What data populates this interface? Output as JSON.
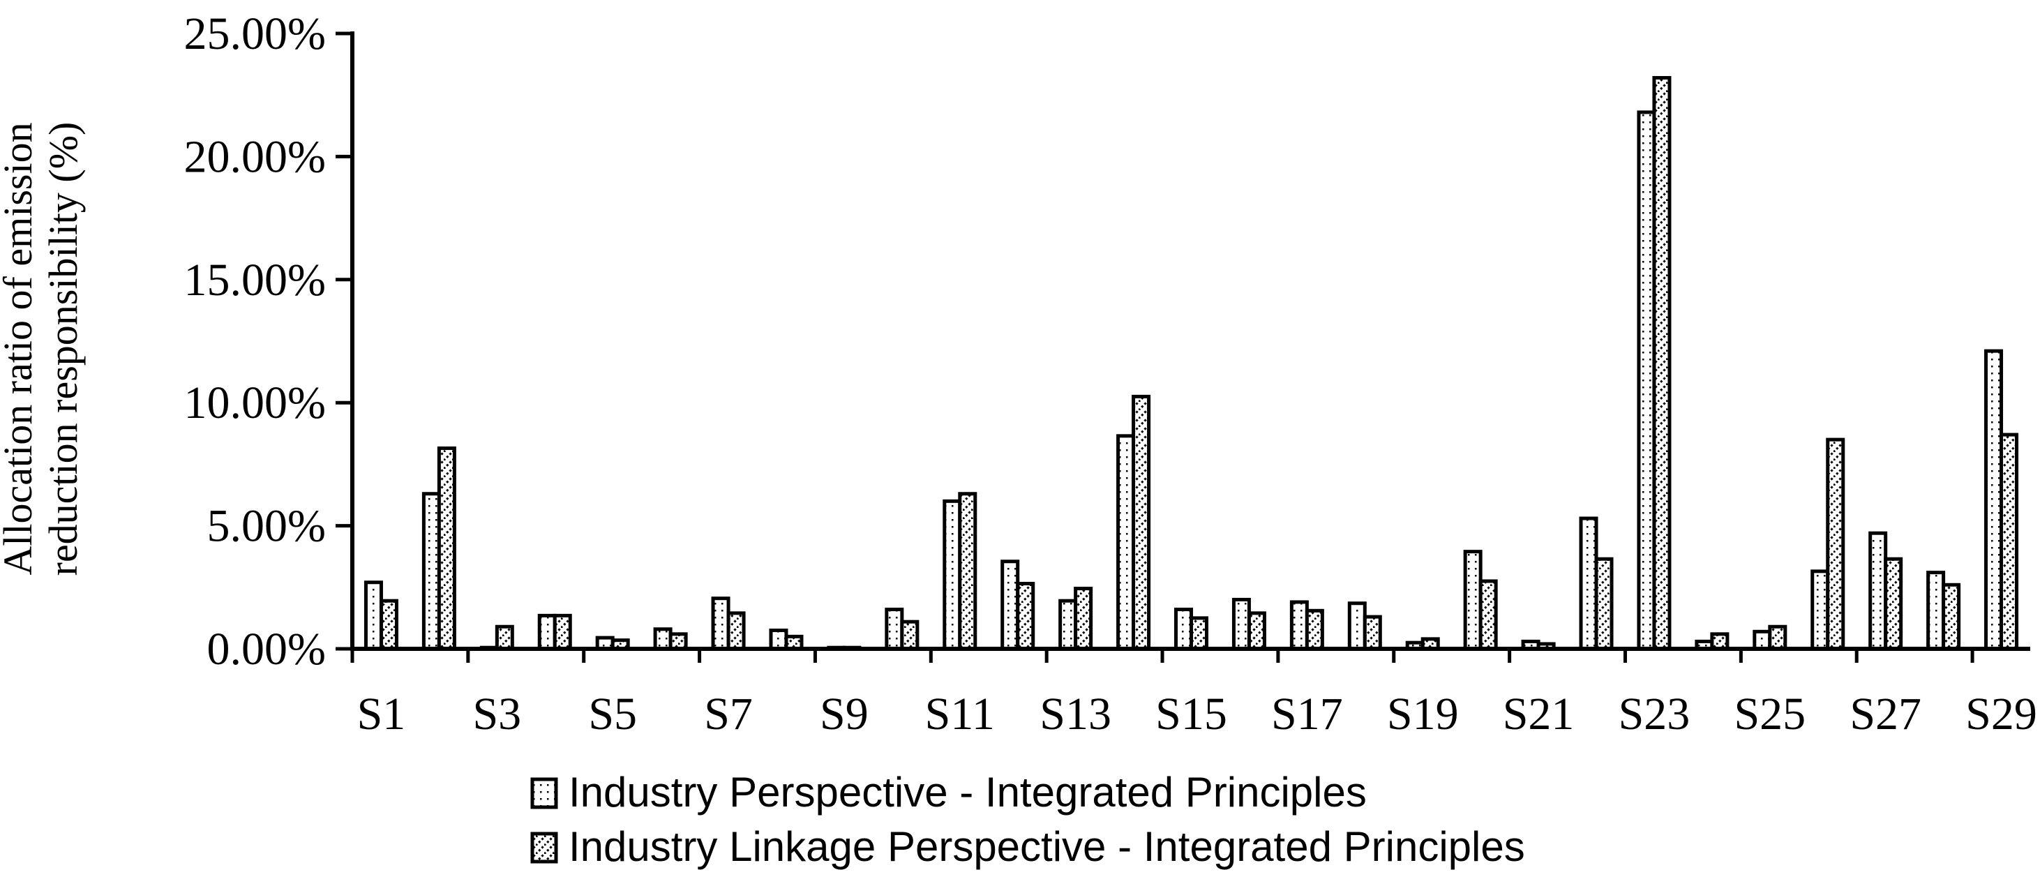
{
  "chart_data": {
    "type": "bar",
    "categories": [
      "S1",
      "S2",
      "S3",
      "S4",
      "S5",
      "S6",
      "S7",
      "S8",
      "S9",
      "S10",
      "S11",
      "S12",
      "S13",
      "S14",
      "S15",
      "S16",
      "S17",
      "S18",
      "S19",
      "S20",
      "S21",
      "S22",
      "S23",
      "S24",
      "S25",
      "S26",
      "S27",
      "S28",
      "S29"
    ],
    "tick_labels_shown": [
      "S1",
      "S3",
      "S5",
      "S7",
      "S9",
      "S11",
      "S13",
      "S15",
      "S17",
      "S19",
      "S21",
      "S23",
      "S25",
      "S27",
      "S29"
    ],
    "series": [
      {
        "name": "Industry Perspective - Integrated Principles",
        "pattern": "dotted",
        "values": [
          2.7,
          6.3,
          0.05,
          1.35,
          0.45,
          0.8,
          2.05,
          0.75,
          0.05,
          1.6,
          6.0,
          3.55,
          1.95,
          8.65,
          1.6,
          2.0,
          1.9,
          1.85,
          0.25,
          3.95,
          0.3,
          5.3,
          21.8,
          0.3,
          0.7,
          3.15,
          4.7,
          3.1,
          12.1
        ]
      },
      {
        "name": "Industry Linkage Perspective - Integrated Principles",
        "pattern": "dashed",
        "values": [
          1.95,
          8.15,
          0.9,
          1.35,
          0.35,
          0.6,
          1.45,
          0.5,
          0.05,
          1.1,
          6.3,
          2.65,
          2.45,
          10.25,
          1.25,
          1.45,
          1.55,
          1.3,
          0.4,
          2.75,
          0.2,
          3.65,
          23.2,
          0.6,
          0.9,
          8.5,
          3.65,
          2.6,
          8.7
        ]
      }
    ],
    "title": "",
    "xlabel": "",
    "ylabel": "Allocation ratio of emission reduction responsibility (%)",
    "ylabel_lines": [
      "Allocation ratio of emission",
      "reduction responsibility (%)"
    ],
    "ylim": [
      0,
      25
    ],
    "yticks": [
      0,
      5,
      10,
      15,
      20,
      25
    ],
    "ytick_labels": [
      "0.00%",
      "5.00%",
      "10.00%",
      "15.00%",
      "20.00%",
      "25.00%"
    ],
    "grid": false,
    "legend_position": "bottom-center",
    "colors": {
      "stroke": "#000000",
      "fill": "#ffffff"
    }
  }
}
